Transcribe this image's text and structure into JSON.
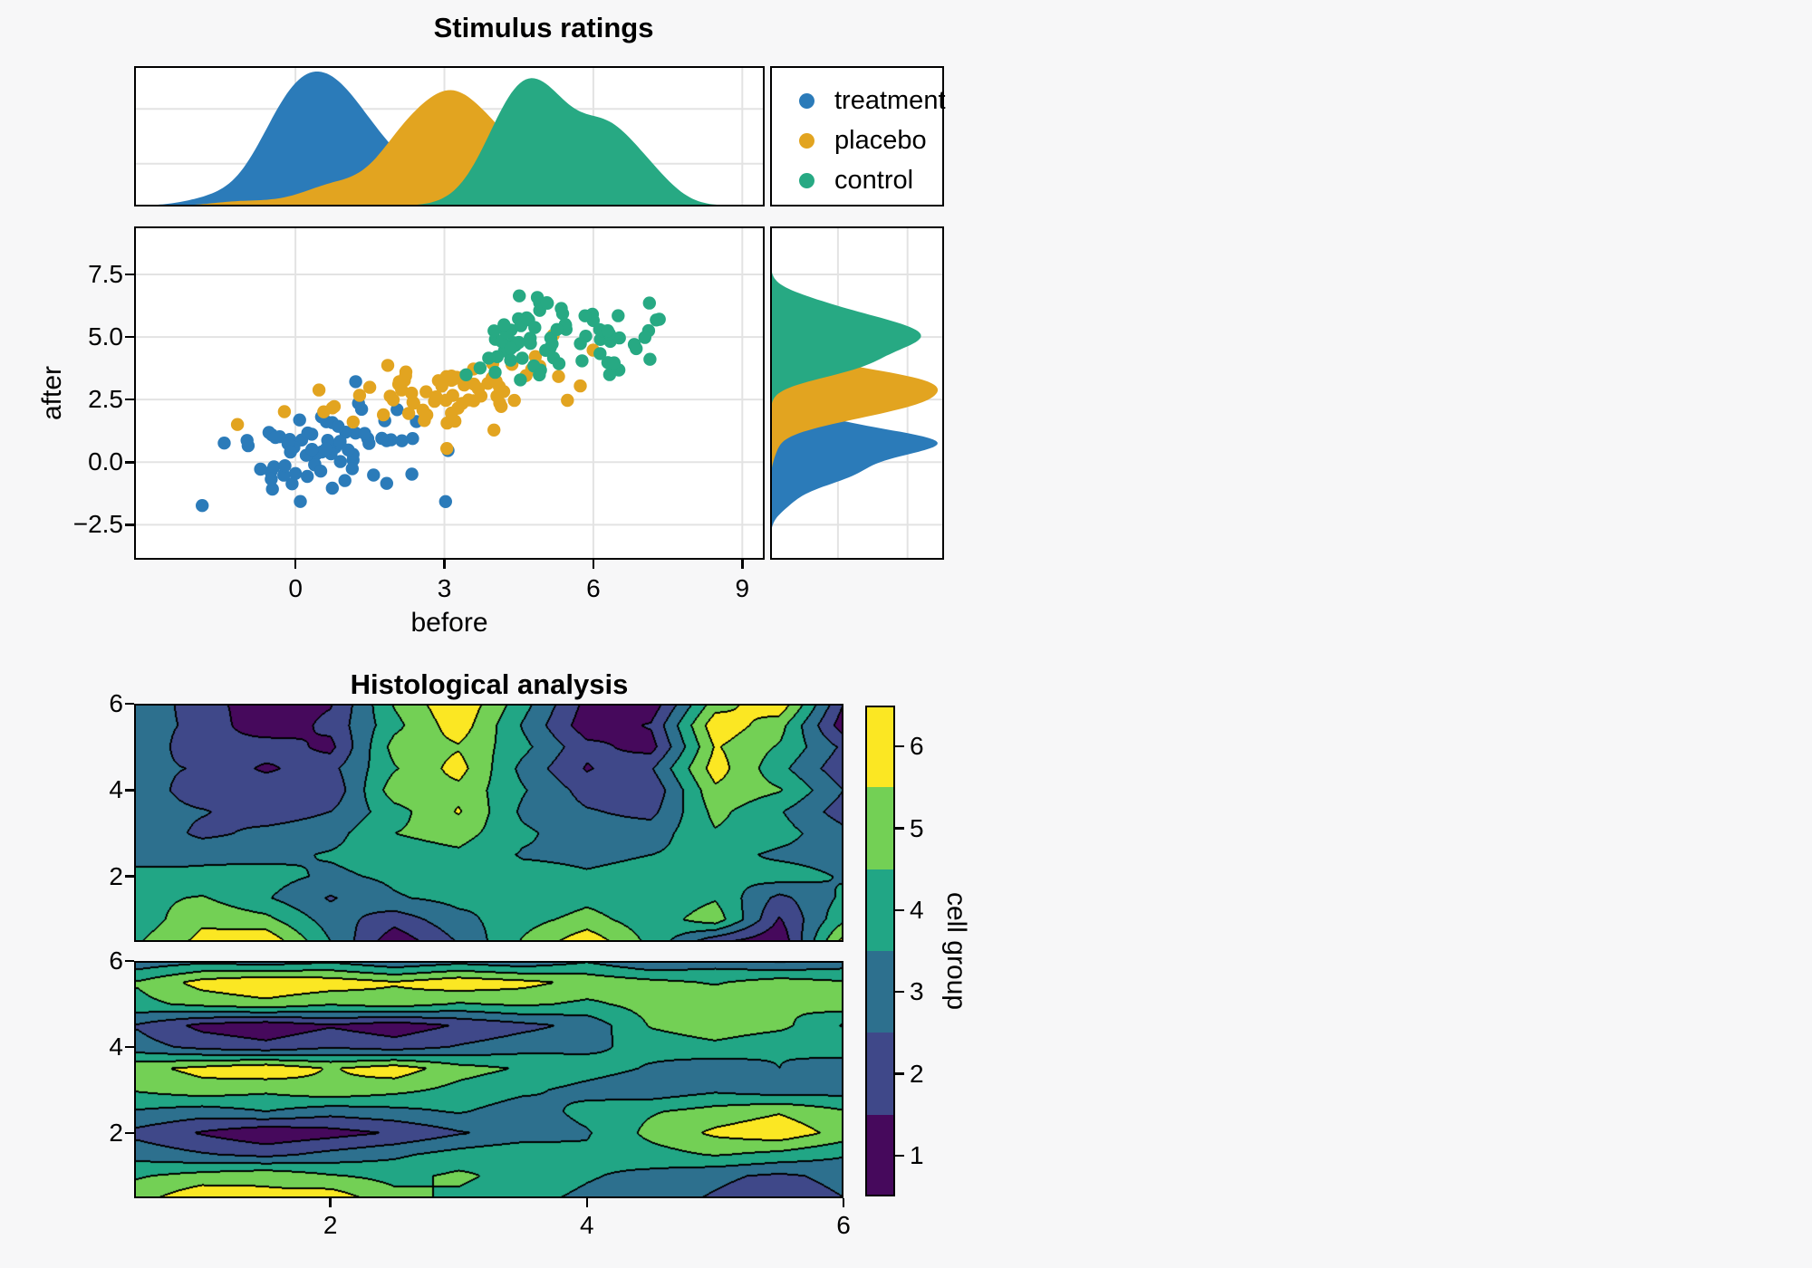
{
  "page": {
    "background": "#F7F7F8",
    "panel_background": "#FFFFFF",
    "gridline_color": "#E3E3E3",
    "spine_color": "#000000",
    "text_color": "#000000"
  },
  "chart_data": [
    {
      "type": "scatter",
      "title": "Stimulus ratings",
      "xlabel": "before",
      "ylabel": "after",
      "x_range": [
        -3.25,
        9.45
      ],
      "y_range": [
        -3.9,
        9.42
      ],
      "x_ticks": [
        {
          "value": 0,
          "label": "0"
        },
        {
          "value": 3,
          "label": "3"
        },
        {
          "value": 6,
          "label": "6"
        },
        {
          "value": 9,
          "label": "9"
        }
      ],
      "y_ticks": [
        {
          "value": 7.5,
          "label": "7.5"
        },
        {
          "value": 5.0,
          "label": "5.0"
        },
        {
          "value": 2.5,
          "label": "2.5"
        },
        {
          "value": 0.0,
          "label": "0.0"
        },
        {
          "value": -2.5,
          "label": "−2.5"
        }
      ],
      "points_per_group": 75,
      "seed": 20417,
      "marginals": {
        "top_bandwidth": 0.5,
        "side_bandwidth": 0.42,
        "style": "filled-kde"
      },
      "series": [
        {
          "name": "treatment",
          "color": "#2B7BB9",
          "components": [
            {
              "weight": 1.0,
              "mean": [
                0.9,
                0.7
              ],
              "sd": [
                1.15,
                0.95
              ],
              "corr": 0.35
            }
          ]
        },
        {
          "name": "placebo",
          "color": "#E2A420",
          "components": [
            {
              "weight": 1.0,
              "mean": [
                3.0,
                2.65
              ],
              "sd": [
                1.3,
                0.78
              ],
              "corr": 0.3
            }
          ]
        },
        {
          "name": "control",
          "color": "#27A983",
          "components": [
            {
              "weight": 0.65,
              "mean": [
                4.7,
                5.0
              ],
              "sd": [
                0.55,
                0.95
              ],
              "corr": 0.2
            },
            {
              "weight": 0.35,
              "mean": [
                6.2,
                4.9
              ],
              "sd": [
                0.75,
                0.9
              ],
              "corr": 0.2
            }
          ]
        }
      ]
    },
    {
      "type": "filled-contour",
      "title": "Histological analysis",
      "levels": [
        0.5,
        1.5,
        2.5,
        3.5,
        4.5,
        5.5,
        6.5
      ],
      "band_colors": [
        "#46095C",
        "#3F4889",
        "#2D708E",
        "#21A685",
        "#73D055",
        "#FBE723"
      ],
      "contour_line_color": "#000000",
      "x_range": [
        0.47,
        6.0
      ],
      "y_range": [
        0.48,
        6.0
      ],
      "grid_coords": [
        0.5,
        1.0,
        1.5,
        2.0,
        2.5,
        3.0,
        3.5,
        4.0,
        4.5,
        5.0,
        5.5,
        6.0
      ],
      "x_ticks": [
        {
          "value": 2,
          "label": "2"
        },
        {
          "value": 4,
          "label": "4"
        },
        {
          "value": 6,
          "label": "6"
        }
      ],
      "y_ticks": [
        {
          "value": 6,
          "label": "6"
        },
        {
          "value": 4,
          "label": "4"
        },
        {
          "value": 2,
          "label": "2"
        }
      ],
      "colorbar": {
        "label": "cell group",
        "ticks": [
          {
            "value": 1,
            "label": "1"
          },
          {
            "value": 2,
            "label": "2"
          },
          {
            "value": 3,
            "label": "3"
          },
          {
            "value": 4,
            "label": "4"
          },
          {
            "value": 5,
            "label": "5"
          },
          {
            "value": 6,
            "label": "6"
          }
        ],
        "value_range": [
          0.5,
          6.5
        ]
      },
      "panels": [
        {
          "name": "top",
          "rows_top_to_bottom": true,
          "values": [
            [
              3.3,
              1.9,
              0.9,
              1.4,
              4.6,
              6.4,
              3.9,
              1.2,
              0.8,
              5.0,
              6.3,
              1.5
            ],
            [
              3.0,
              2.2,
              0.7,
              1.8,
              4.2,
              6.1,
              3.4,
              0.9,
              1.6,
              6.2,
              4.9,
              0.9
            ],
            [
              3.4,
              1.6,
              2.1,
              1.2,
              4.9,
              5.4,
              3.8,
              1.8,
              1.1,
              5.6,
              4.4,
              2.3
            ],
            [
              2.8,
              2.4,
              1.3,
              2.2,
              4.4,
              5.9,
              3.2,
              1.4,
              2.4,
              6.0,
              3.8,
              1.8
            ],
            [
              3.2,
              1.8,
              2.3,
              1.7,
              5.1,
              5.2,
              3.6,
              2.1,
              1.7,
              5.3,
              4.6,
              2.5
            ],
            [
              3.0,
              2.6,
              1.9,
              2.5,
              4.1,
              5.6,
              3.3,
              2.6,
              2.2,
              4.8,
              3.6,
              2.0
            ],
            [
              3.5,
              2.2,
              2.8,
              3.1,
              4.5,
              4.9,
              3.7,
              2.9,
              3.0,
              4.4,
              3.9,
              2.8
            ],
            [
              3.1,
              3.4,
              3.2,
              3.6,
              4.0,
              4.3,
              3.4,
              3.3,
              3.5,
              3.9,
              3.3,
              3.1
            ],
            [
              3.8,
              3.6,
              3.9,
              3.3,
              3.7,
              4.1,
              3.9,
              3.6,
              3.8,
              3.5,
              4.0,
              3.4
            ],
            [
              4.2,
              4.6,
              3.6,
              2.4,
              3.4,
              3.8,
              3.5,
              4.2,
              3.7,
              4.4,
              2.2,
              3.7
            ],
            [
              3.9,
              5.3,
              4.8,
              3.0,
              1.9,
              3.2,
              4.1,
              4.9,
              3.9,
              5.1,
              1.4,
              4.3
            ],
            [
              4.4,
              5.8,
              6.3,
              3.5,
              0.8,
              2.6,
              4.6,
              6.2,
              4.2,
              1.8,
              0.7,
              5.9
            ]
          ]
        },
        {
          "name": "bottom",
          "rows_top_to_bottom": true,
          "values": [
            [
              2.8,
              3.2,
              2.9,
              3.3,
              2.6,
              3.1,
              2.7,
              3.4,
              2.5,
              3.0,
              2.4,
              2.9
            ],
            [
              4.6,
              5.9,
              6.4,
              6.1,
              5.6,
              6.2,
              5.8,
              5.2,
              4.8,
              4.4,
              5.0,
              4.6
            ],
            [
              4.2,
              4.8,
              5.2,
              4.6,
              5.0,
              4.4,
              4.7,
              4.3,
              4.9,
              5.3,
              4.5,
              5.1
            ],
            [
              2.4,
              1.2,
              0.8,
              1.4,
              0.9,
              1.6,
              2.2,
              2.8,
              4.6,
              5.2,
              4.8,
              3.4
            ],
            [
              2.9,
              2.2,
              1.8,
              2.4,
              2.0,
              2.6,
              3.1,
              3.3,
              3.8,
              4.2,
              3.6,
              4.4
            ],
            [
              5.2,
              5.8,
              6.3,
              5.4,
              6.1,
              4.9,
              4.4,
              3.9,
              3.4,
              2.9,
              3.5,
              2.6
            ],
            [
              4.6,
              5.1,
              4.7,
              5.3,
              4.8,
              4.2,
              3.7,
              3.2,
              2.8,
              3.3,
              2.9,
              3.1
            ],
            [
              3.4,
              3.0,
              3.5,
              2.9,
              3.2,
              3.6,
              3.0,
              3.8,
              4.4,
              4.9,
              5.4,
              4.6
            ],
            [
              2.2,
              1.4,
              0.7,
              1.1,
              1.6,
              2.4,
              2.9,
              3.4,
              4.8,
              5.7,
              6.2,
              5.1
            ],
            [
              3.1,
              2.6,
              2.2,
              2.8,
              3.3,
              3.9,
              4.3,
              3.7,
              4.1,
              4.6,
              4.2,
              3.6
            ],
            [
              4.4,
              4.9,
              5.3,
              4.6,
              4.2,
              4.7,
              4.1,
              3.6,
              3.2,
              2.7,
              2.3,
              2.8
            ],
            [
              5.1,
              6.3,
              5.7,
              6.1,
              4.8,
              4.3,
              3.8,
              3.3,
              2.9,
              2.4,
              1.9,
              2.5
            ]
          ]
        }
      ]
    }
  ]
}
